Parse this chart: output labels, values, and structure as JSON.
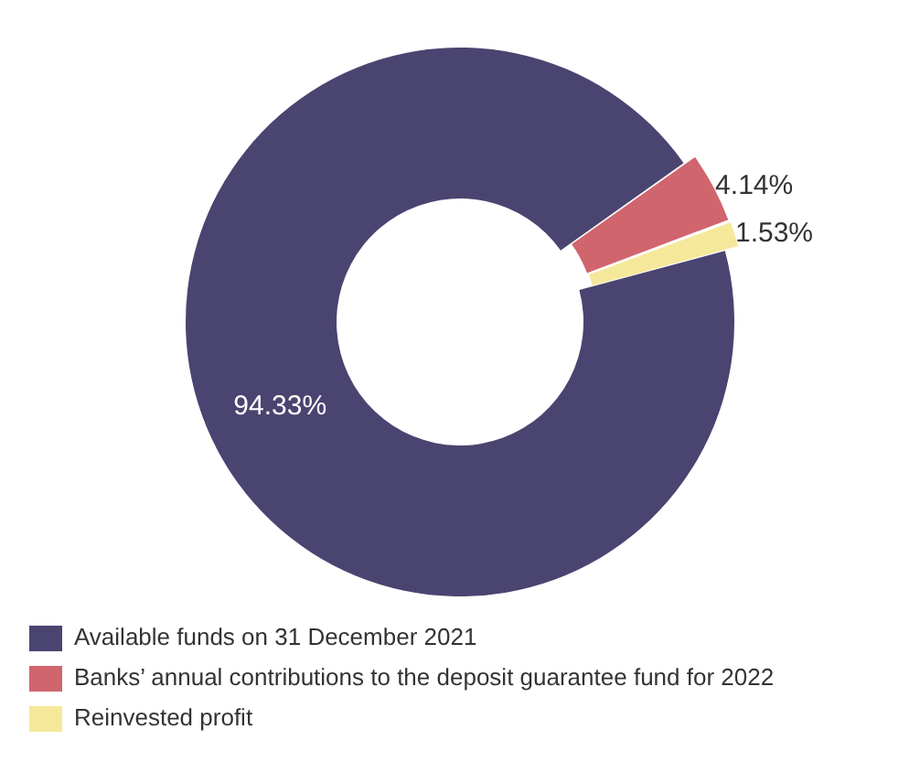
{
  "chart_data": {
    "type": "donut",
    "categories": [
      "Available funds on 31 December 2021",
      "Banks’ annual contributions to the deposit guarantee fund for 2022",
      "Reinvested profit"
    ],
    "values": [
      94.33,
      4.14,
      1.53
    ],
    "colors": [
      "#4a4470",
      "#d0656e",
      "#f6e89a"
    ],
    "value_labels": [
      "94.33%",
      "4.14%",
      "1.53%"
    ],
    "legend": "bottom"
  }
}
